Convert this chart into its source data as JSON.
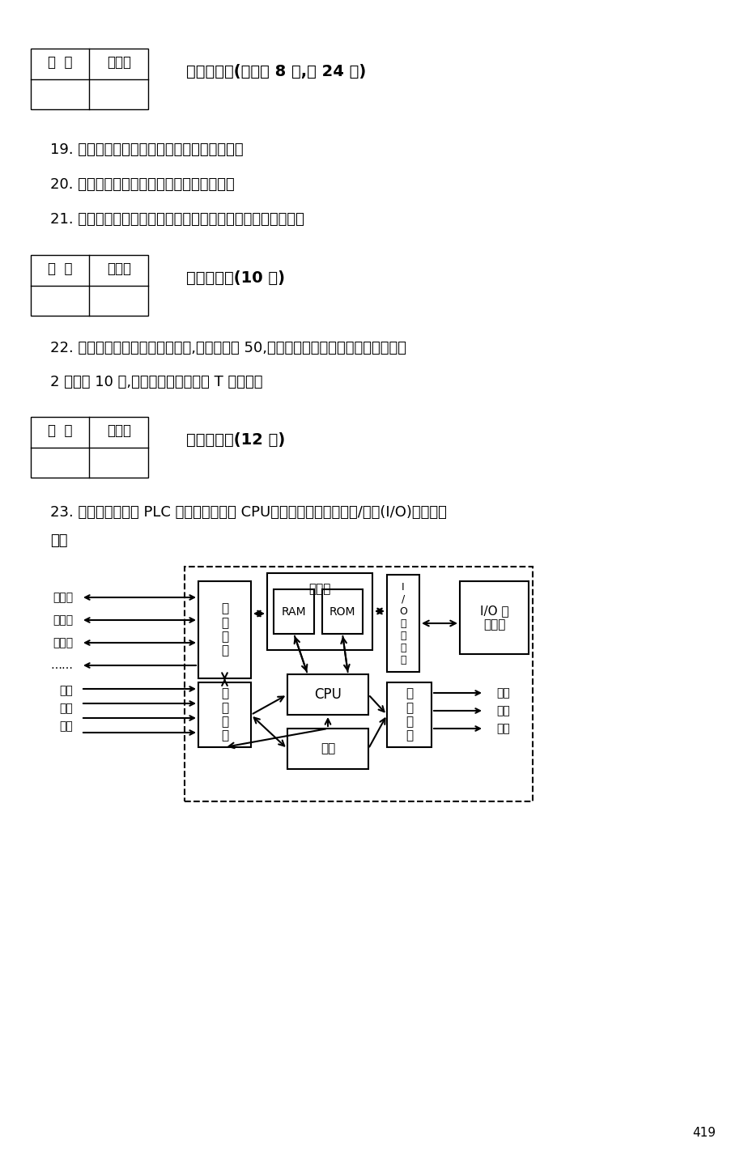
{
  "bg_color": "#f5f5f0",
  "text_color": "#1a1a1a",
  "section3_title": "三、简答题(每小题 8 分,共 24 分)",
  "q19": "19. 完善的机电一体化系统主要包括哪几部分？",
  "q20": "20. 齿轮传动的齿侧间隙的调整方法有哪些？",
  "q21": "21. 计算机控制系统由哪几部分组成？每一部分的作用是什么？",
  "section4_title": "四、计算题(10 分)",
  "q22_line1": "22. 一个四相八拍运行的步进电机,转子齿数为 50,则其步距角为多少？如要求步进电机",
  "q22_line2": "2 秒钟转 10 圈,则每一步需要的时间 T 为多少？",
  "section5_title": "五、综合题(12 分)",
  "q23_line1": "23. 分析图中整体式 PLC 的各组成部分中 CPU、存储器、电源、输入/输出(I/O)单元的功",
  "q23_line2": "能。",
  "score_label": "得  分",
  "reviewer_label": "评卷人",
  "page_number": "419"
}
